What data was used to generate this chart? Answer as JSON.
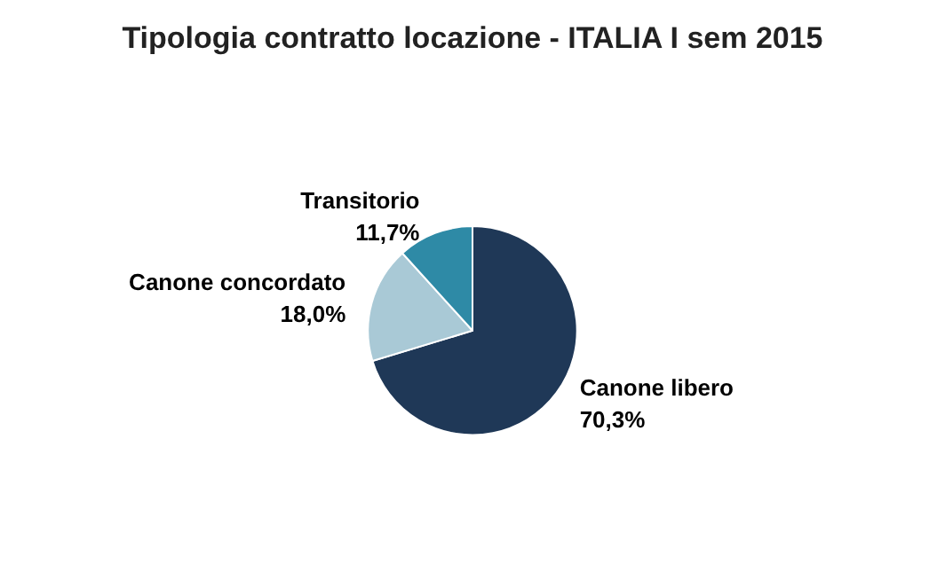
{
  "chart_data": {
    "type": "pie",
    "title": "Tipologia contratto locazione - ITALIA I sem 2015",
    "categories": [
      "Canone libero",
      "Canone concordato",
      "Transitorio"
    ],
    "values": [
      70.3,
      18.0,
      11.7
    ],
    "colors": [
      "#1f3857",
      "#a9c9d6",
      "#2e8aa6"
    ],
    "value_labels": [
      "70,3%",
      "18,0%",
      "11,7%"
    ]
  }
}
